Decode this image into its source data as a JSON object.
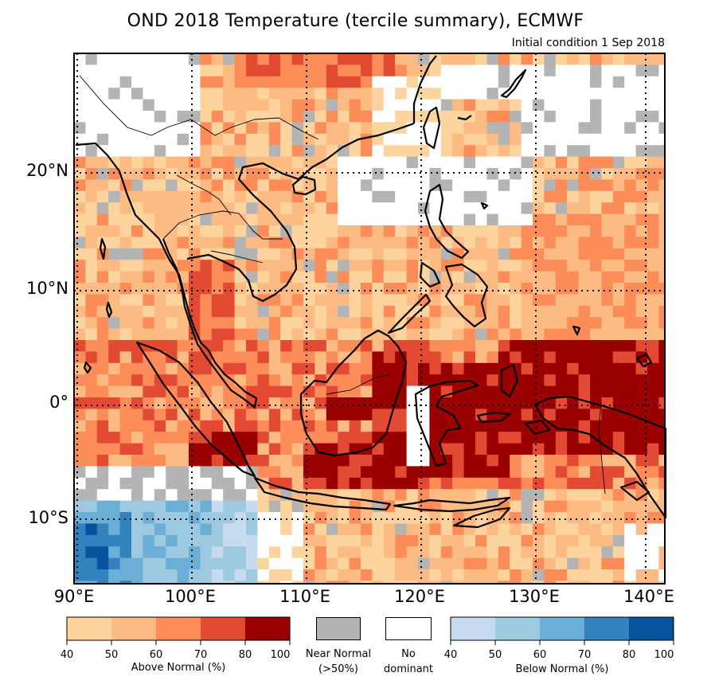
{
  "title": "OND 2018 Temperature (tercile summary), ECMWF",
  "subtitle": "Initial condition 1 Sep 2018",
  "lat_labels": [
    "20°N",
    "10°N",
    "0°",
    "10°S"
  ],
  "lon_labels": [
    "90°E",
    "100°E",
    "110°E",
    "120°E",
    "130°E",
    "140°E"
  ],
  "colors": {
    "above": [
      "#fdd49e",
      "#fdbb84",
      "#fc8d59",
      "#e34a33",
      "#990000"
    ],
    "below": [
      "#c6dbef",
      "#9ecae1",
      "#6baed6",
      "#3182bd",
      "#08519c"
    ],
    "near_normal": "#b4b4b4",
    "no_dominant": "#ffffff"
  },
  "legend": {
    "above_label": "Above Normal (%)",
    "above_ticks": [
      "40",
      "50",
      "60",
      "70",
      "80",
      "100"
    ],
    "near_normal_line1": "Near Normal",
    "near_normal_line2": "(>50%)",
    "no_dominant_line1": "No",
    "no_dominant_line2": "dominant",
    "below_label": "Below Normal (%)",
    "below_ticks": [
      "40",
      "50",
      "60",
      "70",
      "80",
      "100"
    ]
  }
}
